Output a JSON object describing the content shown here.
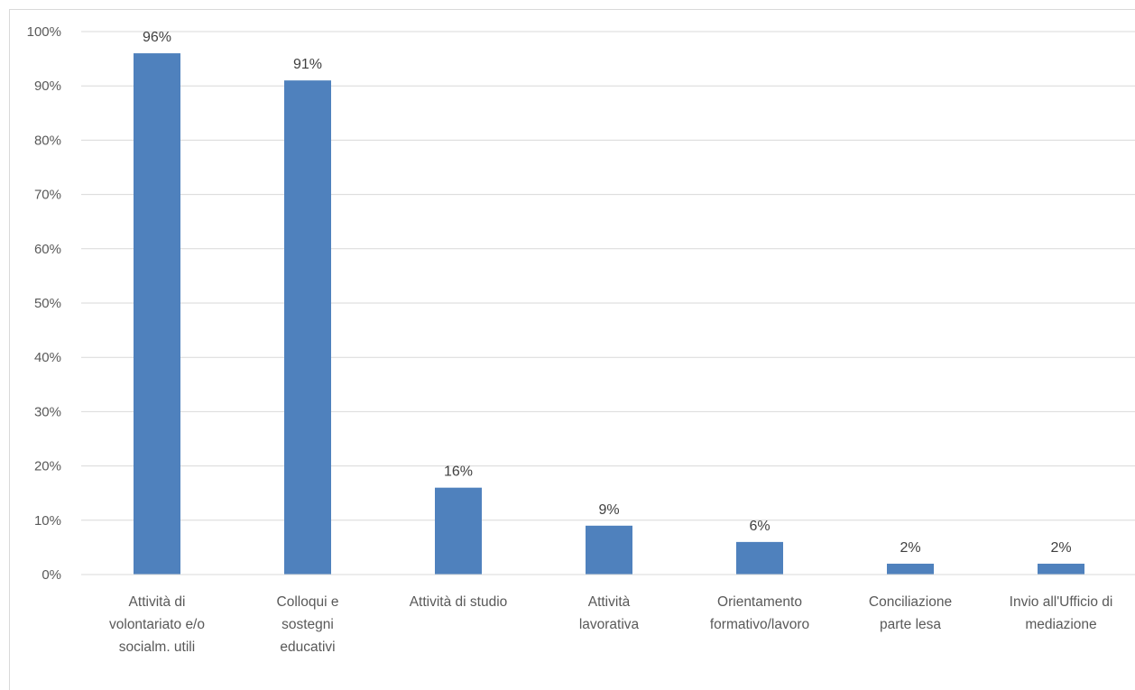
{
  "chart_data": {
    "type": "bar",
    "categories": [
      "Attività di volontariato e/o socialm. utili",
      "Colloqui e sostegni educativi",
      "Attività di studio",
      "Attività lavorativa",
      "Orientamento formativo/lavoro",
      "Conciliazione parte lesa",
      "Invio all'Ufficio di mediazione"
    ],
    "category_lines": [
      [
        "Attività di",
        "volontariato e/o",
        "socialm. utili"
      ],
      [
        "Colloqui e",
        "sostegni",
        "educativi"
      ],
      [
        "Attività di studio"
      ],
      [
        "Attività",
        "lavorativa"
      ],
      [
        "Orientamento",
        "formativo/lavoro"
      ],
      [
        "Conciliazione",
        "parte lesa"
      ],
      [
        "Invio all'Ufficio di",
        "mediazione"
      ]
    ],
    "values": [
      96,
      91,
      16,
      9,
      6,
      2,
      2
    ],
    "data_labels": [
      "96%",
      "91%",
      "16%",
      "9%",
      "6%",
      "2%",
      "2%"
    ],
    "title": "",
    "xlabel": "",
    "ylabel": "",
    "ylim": [
      0,
      100
    ],
    "yticks": [
      0,
      10,
      20,
      30,
      40,
      50,
      60,
      70,
      80,
      90,
      100
    ],
    "ytick_labels": [
      "0%",
      "10%",
      "20%",
      "30%",
      "40%",
      "50%",
      "60%",
      "70%",
      "80%",
      "90%",
      "100%"
    ],
    "grid": true,
    "legend": "none",
    "bar_color": "#4f81bd",
    "grid_color": "#d9d9d9"
  }
}
